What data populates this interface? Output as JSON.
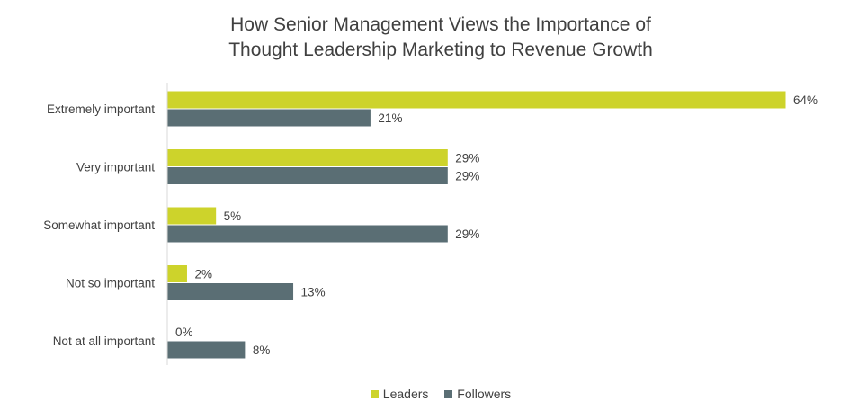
{
  "chart_data": {
    "type": "bar",
    "orientation": "horizontal",
    "title_lines": [
      "How Senior Management Views the Importance of",
      "Thought Leadership Marketing to Revenue Growth"
    ],
    "categories": [
      "Extremely important",
      "Very important",
      "Somewhat important",
      "Not so important",
      "Not at all important"
    ],
    "series": [
      {
        "name": "Leaders",
        "color": "#cdd32b",
        "values": [
          64,
          29,
          5,
          2,
          0
        ],
        "labels": [
          "64%",
          "29%",
          "5%",
          "2%",
          "0%"
        ]
      },
      {
        "name": "Followers",
        "color": "#5a6e74",
        "values": [
          21,
          29,
          29,
          13,
          8
        ],
        "labels": [
          "21%",
          "29%",
          "29%",
          "13%",
          "8%"
        ]
      }
    ],
    "xlim": [
      0,
      64
    ],
    "value_format": "percent",
    "grid": false,
    "legend_position": "bottom-center",
    "axis_color": "#d9d9d9",
    "text_color": "#404040"
  }
}
